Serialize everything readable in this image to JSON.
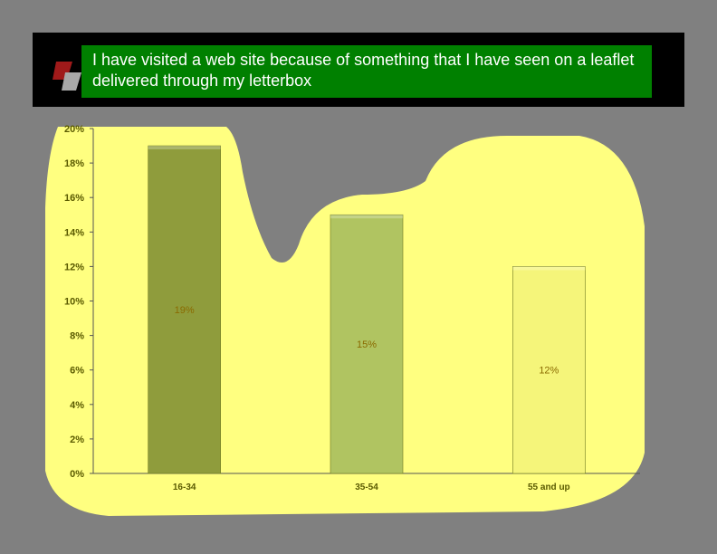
{
  "header": {
    "title_line1": "I have visited a web site because of something that I have seen on a leaflet",
    "title_line2": "delivered through my letterbox"
  },
  "colors": {
    "background": "#808080",
    "header_bg": "#000000",
    "title_bg": "#008000",
    "plot_area": "#ffff80",
    "logo_red": "#a01a1a",
    "logo_gray": "#a8a8a8"
  },
  "chart_data": {
    "type": "bar",
    "categories": [
      "16-34",
      "35-54",
      "55 and up"
    ],
    "values": [
      19,
      15,
      12
    ],
    "data_labels": [
      "19%",
      "15%",
      "12%"
    ],
    "bar_colors": [
      "#8f9c3c",
      "#b0c461",
      "#f5f57a"
    ],
    "ylim": [
      0,
      20
    ],
    "yticks": [
      "0%",
      "2%",
      "4%",
      "6%",
      "8%",
      "10%",
      "12%",
      "14%",
      "16%",
      "18%",
      "20%"
    ],
    "ytick_values": [
      0,
      2,
      4,
      6,
      8,
      10,
      12,
      14,
      16,
      18,
      20
    ],
    "grid": false,
    "legend": "none"
  }
}
